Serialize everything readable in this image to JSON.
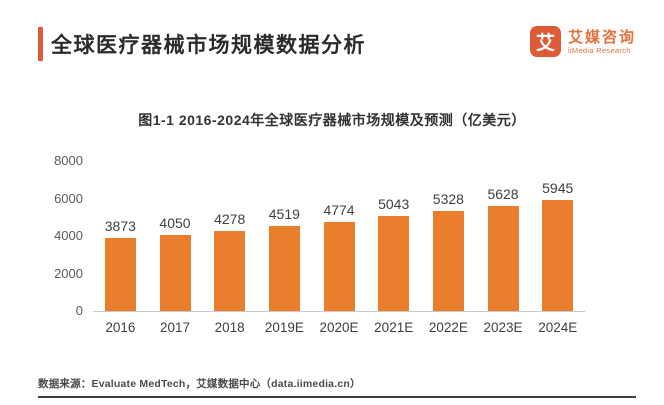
{
  "header": {
    "title": "全球医疗器械市场规模数据分析",
    "logo": {
      "icon_glyph": "艾",
      "brand_cn": "艾媒咨询",
      "brand_en": "iiMedia Research"
    }
  },
  "chart": {
    "title": "图1-1 2016-2024年全球医疗器械市场规模及预测（亿美元）"
  },
  "chart_data": {
    "type": "bar",
    "title": "图1-1 2016-2024年全球医疗器械市场规模及预测（亿美元）",
    "categories": [
      "2016",
      "2017",
      "2018",
      "2019E",
      "2020E",
      "2021E",
      "2022E",
      "2023E",
      "2024E"
    ],
    "values": [
      3873,
      4050,
      4278,
      4519,
      4774,
      5043,
      5328,
      5628,
      5945
    ],
    "unit": "亿美元",
    "xlabel": "",
    "ylabel": "",
    "ylim": [
      0,
      8000
    ],
    "yticks": [
      0,
      2000,
      4000,
      6000,
      8000
    ],
    "bar_color": "#e97e2c",
    "grid": false,
    "legend": false
  },
  "footer": {
    "source": "数据来源：Evaluate MedTech，艾媒数据中心（data.iimedia.cn）"
  },
  "colors": {
    "accent": "#db5b3c",
    "bar": "#e97e2c",
    "logo": "#de5b38",
    "axis_line": "#c9c9c9",
    "footer_line": "#404040"
  }
}
